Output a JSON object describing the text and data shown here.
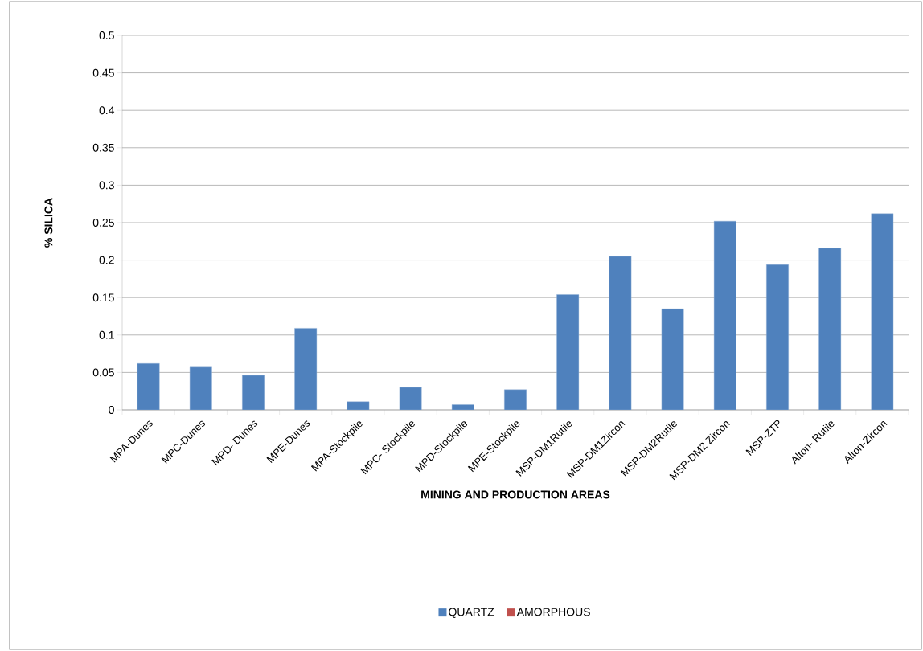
{
  "chart_data": {
    "type": "bar",
    "xlabel": "MINING AND PRODUCTION AREAS",
    "ylabel": "% SILICA",
    "categories": [
      "MPA-Dunes",
      "MPC-Dunes",
      "MPD- Dunes",
      "MPE-Dunes",
      "MPA-Stockpile",
      "MPC- Stockpile",
      "MPD-Stockpile",
      "MPE-Stockpile",
      "MSP-DM1Rutile",
      "MSP-DM1Zircon",
      "MSP-DM2Rutile",
      "MSP-DM2 Zircon",
      "MSP-ZTP",
      "Alton- Rutile",
      "Alton-Zircon"
    ],
    "series": [
      {
        "name": "QUARTZ",
        "color": "#4f81bd",
        "values": [
          0.062,
          0.057,
          0.046,
          0.109,
          0.011,
          0.03,
          0.007,
          0.027,
          0.154,
          0.205,
          0.135,
          0.252,
          0.194,
          0.216,
          0.262
        ]
      },
      {
        "name": "AMORPHOUS",
        "color": "#c0504d",
        "values": [
          null,
          null,
          null,
          null,
          null,
          null,
          null,
          null,
          null,
          null,
          null,
          null,
          null,
          null,
          null
        ]
      }
    ],
    "ylim": [
      0,
      0.5
    ],
    "yticks": [
      0,
      0.05,
      0.1,
      0.15,
      0.2,
      0.25,
      0.3,
      0.35,
      0.4,
      0.45,
      0.5
    ],
    "grid": "y",
    "legend": "bottom"
  }
}
